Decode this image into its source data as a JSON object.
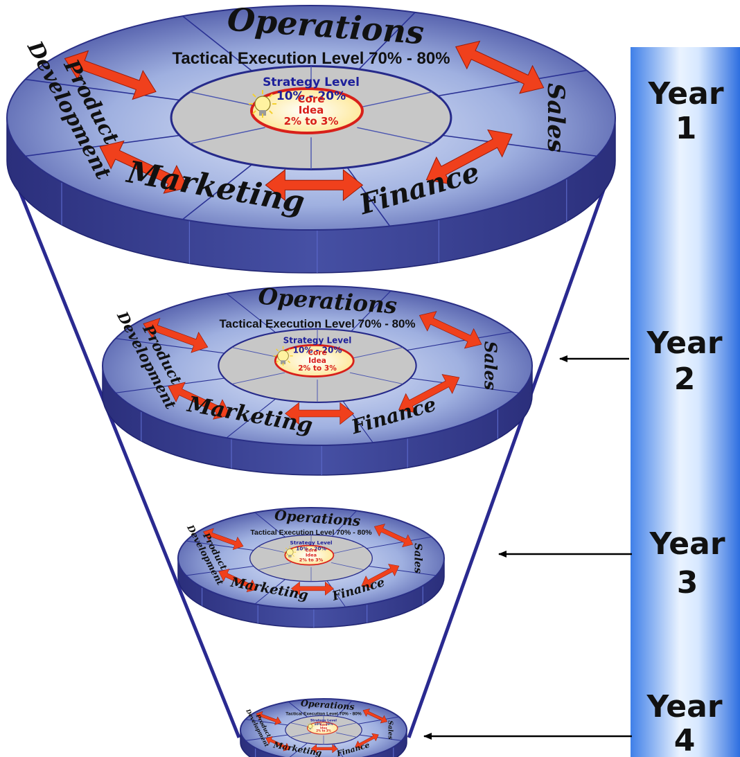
{
  "disk_labels": {
    "operations": "Operations",
    "tactical": "Tactical Execution Level 70% - 80%",
    "strategy_title": "Strategy Level",
    "strategy_pct": "10% - 20%",
    "core_title": "Core",
    "core_sub": "Idea",
    "core_pct": "2% to 3%",
    "product_1": "Product",
    "product_2": "Development",
    "sales": "Sales",
    "marketing": "Marketing",
    "finance": "Finance"
  },
  "years": [
    {
      "word": "Year",
      "number": "1"
    },
    {
      "word": "Year",
      "number": "2"
    },
    {
      "word": "Year",
      "number": "3"
    },
    {
      "word": "Year",
      "number": "4"
    }
  ],
  "colors": {
    "disk_top_light": "#c9d4ee",
    "disk_top_dark": "#3a3f95",
    "disk_side": "#343a8c",
    "inner_gray": "#c7c7c7",
    "ring_line": "#262a8a",
    "arrow": "#f0401c",
    "core_fill": "#fff6c8",
    "core_ring": "#d8201a",
    "core_text": "#d8201a",
    "strategy_text": "#1d1f9a",
    "timeline_blue": "#3e86f0",
    "funnel_line": "#2a2a90"
  }
}
